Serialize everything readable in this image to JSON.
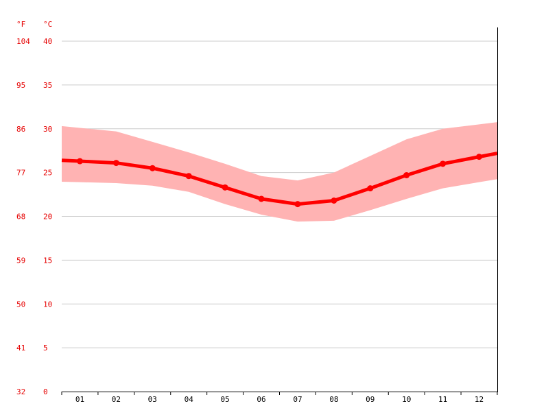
{
  "chart_data": {
    "type": "line",
    "title": "",
    "xlabel": "",
    "ylabel": "",
    "unit_f": "°F",
    "unit_c": "°C",
    "categories": [
      "01",
      "02",
      "03",
      "04",
      "05",
      "06",
      "07",
      "08",
      "09",
      "10",
      "11",
      "12"
    ],
    "y_ticks_c": [
      "0",
      "5",
      "10",
      "15",
      "20",
      "25",
      "30",
      "35",
      "40"
    ],
    "y_ticks_f": [
      "32",
      "41",
      "50",
      "59",
      "68",
      "77",
      "86",
      "95",
      "104"
    ],
    "ylim": [
      0,
      40
    ],
    "grid": true,
    "series": [
      {
        "role": "mean",
        "values": [
          26.3,
          26.1,
          25.5,
          24.6,
          23.3,
          22.0,
          21.4,
          21.8,
          23.2,
          24.7,
          26.0,
          26.8
        ]
      },
      {
        "role": "max",
        "values": [
          30.1,
          29.7,
          28.5,
          27.3,
          26.0,
          24.6,
          24.1,
          25.0,
          26.9,
          28.8,
          30.0,
          30.5
        ]
      },
      {
        "role": "min",
        "values": [
          23.9,
          23.8,
          23.5,
          22.8,
          21.4,
          20.2,
          19.4,
          19.5,
          20.7,
          22.0,
          23.2,
          23.9
        ]
      }
    ],
    "colors": {
      "line": "#ff0000",
      "band": "#ffb3b3",
      "axis_text": "#e60000",
      "grid": "#cccccc"
    }
  }
}
